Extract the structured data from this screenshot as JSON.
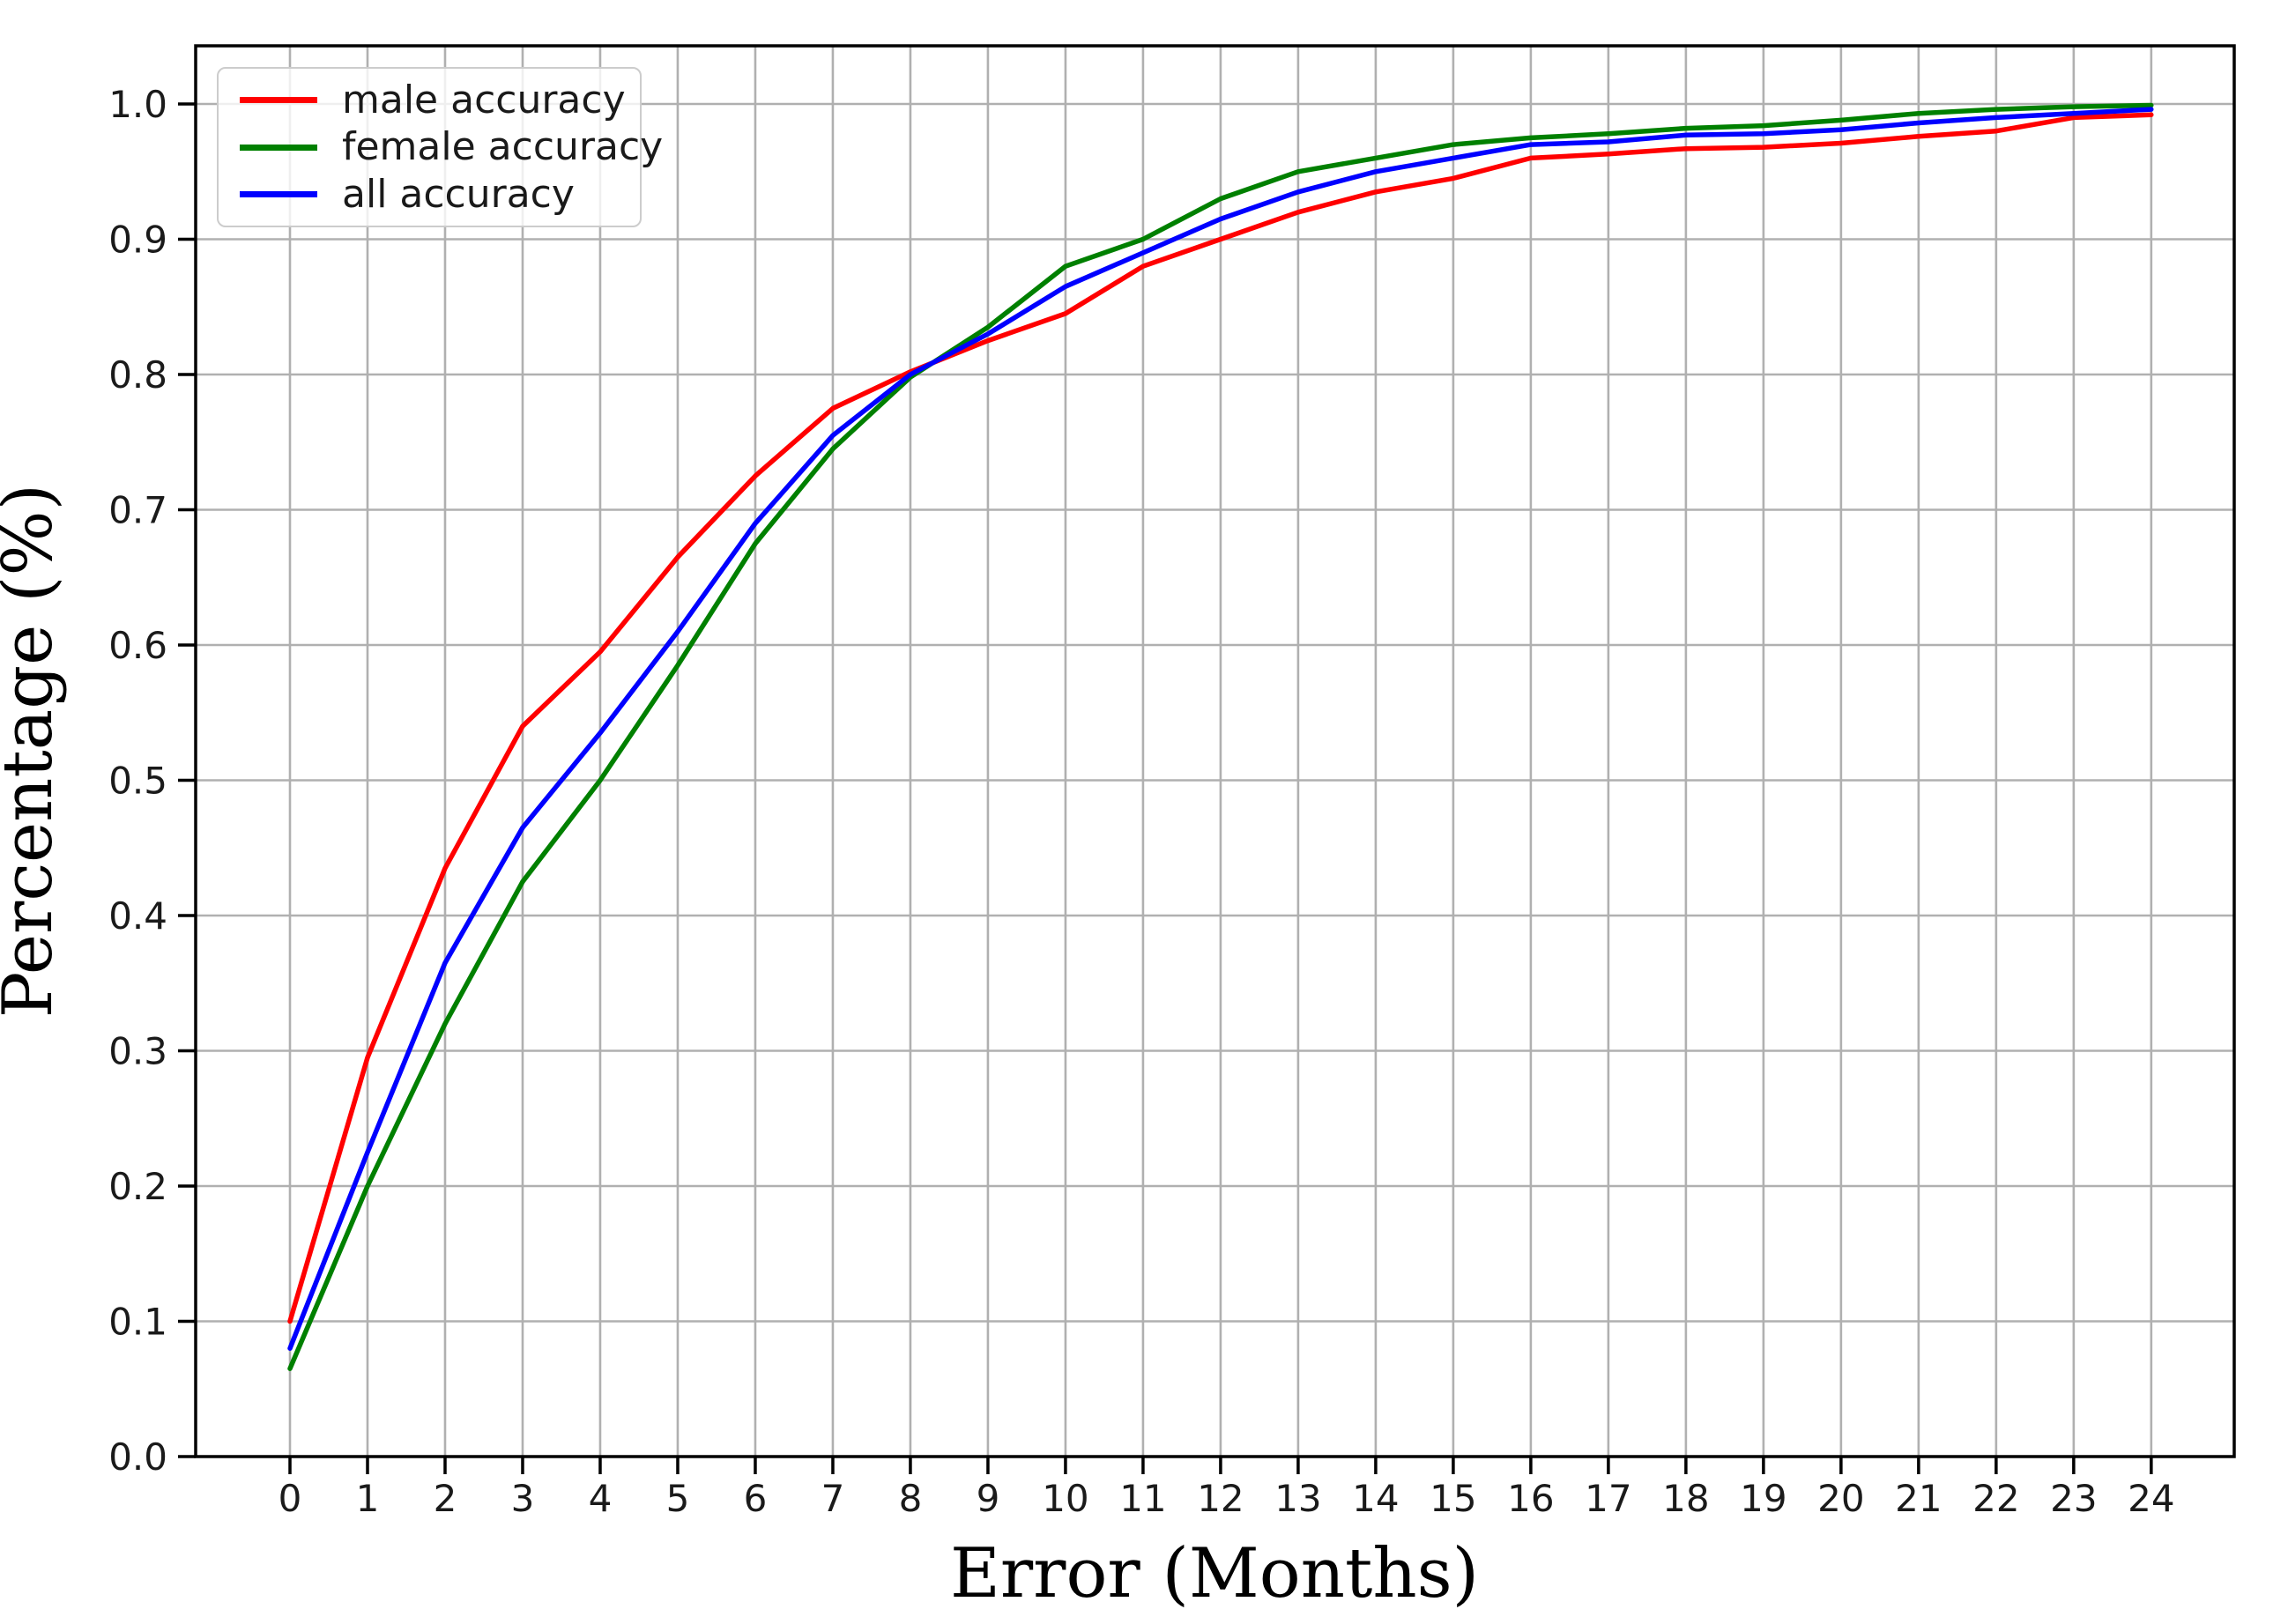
{
  "chart_data": {
    "type": "line",
    "title": "",
    "xlabel": "Error (Months)",
    "ylabel": "Percentage (%)",
    "x": [
      0,
      1,
      2,
      3,
      4,
      5,
      6,
      7,
      8,
      9,
      10,
      11,
      12,
      13,
      14,
      15,
      16,
      17,
      18,
      19,
      20,
      21,
      22,
      23,
      24
    ],
    "xtick_labels": [
      "0",
      "1",
      "2",
      "3",
      "4",
      "5",
      "6",
      "7",
      "8",
      "9",
      "10",
      "11",
      "12",
      "13",
      "14",
      "15",
      "16",
      "17",
      "18",
      "19",
      "20",
      "21",
      "22",
      "23",
      "24"
    ],
    "yticks": [
      0.0,
      0.1,
      0.2,
      0.3,
      0.4,
      0.5,
      0.6,
      0.7,
      0.8,
      0.9,
      1.0
    ],
    "ytick_labels": [
      "0.0",
      "0.1",
      "0.2",
      "0.3",
      "0.4",
      "0.5",
      "0.6",
      "0.7",
      "0.8",
      "0.9",
      "1.0"
    ],
    "xlim": [
      -1.216,
      25.07
    ],
    "ylim": [
      0.0,
      1.043
    ],
    "grid": true,
    "grid_color": "#b0b0b0",
    "spine_color": "#000000",
    "tick_label_color": "#1a1a1a",
    "legend_position": "upper-left",
    "series": [
      {
        "name": "male accuracy",
        "color": "#ff0000",
        "values": [
          0.1,
          0.295,
          0.435,
          0.54,
          0.595,
          0.665,
          0.725,
          0.775,
          0.802,
          0.825,
          0.845,
          0.88,
          0.9,
          0.92,
          0.935,
          0.945,
          0.96,
          0.963,
          0.967,
          0.968,
          0.971,
          0.976,
          0.98,
          0.99,
          0.992
        ]
      },
      {
        "name": "female accuracy",
        "color": "#008000",
        "values": [
          0.065,
          0.2,
          0.32,
          0.425,
          0.5,
          0.585,
          0.675,
          0.745,
          0.798,
          0.835,
          0.88,
          0.9,
          0.93,
          0.95,
          0.96,
          0.97,
          0.975,
          0.978,
          0.982,
          0.984,
          0.988,
          0.993,
          0.996,
          0.998,
          0.999
        ]
      },
      {
        "name": "all accuracy",
        "color": "#0000ff",
        "values": [
          0.08,
          0.225,
          0.365,
          0.465,
          0.535,
          0.61,
          0.69,
          0.755,
          0.8,
          0.83,
          0.865,
          0.89,
          0.915,
          0.935,
          0.95,
          0.96,
          0.97,
          0.972,
          0.977,
          0.978,
          0.981,
          0.986,
          0.99,
          0.993,
          0.996
        ]
      }
    ]
  }
}
